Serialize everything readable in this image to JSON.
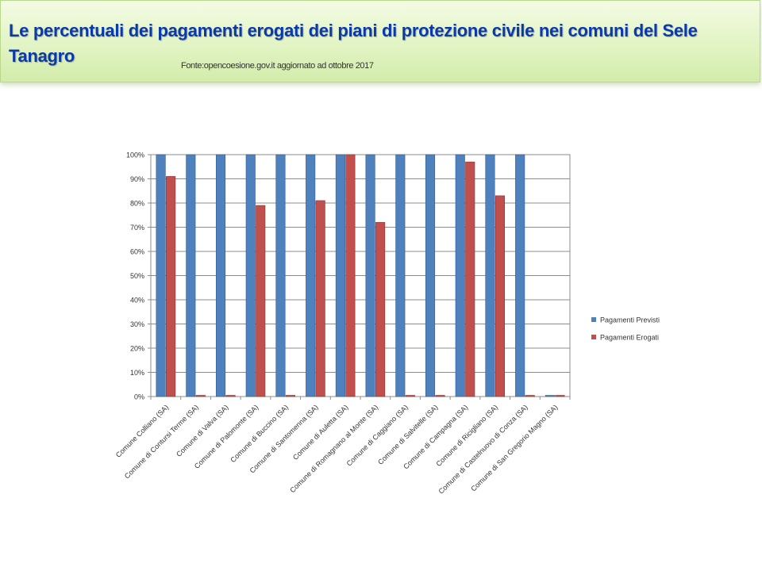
{
  "header": {
    "title": "Le percentuali dei pagamenti erogati  dei piani di protezione civile  nei comuni del Sele Tanagro",
    "source": "Fonte:opencoesione.gov.it aggiornato ad ottobre 2017"
  },
  "colors": {
    "previsti": "#4f81bd",
    "erogati": "#c0504d",
    "grid": "#8c8c8c",
    "axis_text": "#333333"
  },
  "chart_data": {
    "type": "bar",
    "title": "",
    "xlabel": "",
    "ylabel": "",
    "ylim": [
      0,
      100
    ],
    "yticks": [
      "0%",
      "10%",
      "20%",
      "30%",
      "40%",
      "50%",
      "60%",
      "70%",
      "80%",
      "90%",
      "100%"
    ],
    "grid": true,
    "legend_position": "right",
    "categories": [
      "Comune Colliano (SA)",
      "Comune di Contursi Terme (SA)",
      "Comune di Valva (SA)",
      "Comune di Palomonte (SA)",
      "Comune di Buccino (SA)",
      "Comune di Santomenna (SA)",
      "Comune di Auletta (SA)",
      "Comune di Romagnano al Monte (SA)",
      "Comune di Caggiano (SA)",
      "Comune di Salvitelle (SA)",
      "Comune di Campagna (SA)",
      "Comune di Ricigliano (SA)",
      "Comune di Castelnuovo di Conza (SA)",
      "Comune di San Gregorio Magno (SA)"
    ],
    "series": [
      {
        "name": "Pagamenti Previsti",
        "values": [
          100,
          100,
          100,
          100,
          100,
          100,
          100,
          100,
          100,
          100,
          100,
          100,
          100,
          0
        ]
      },
      {
        "name": "Pagamenti Erogati",
        "values": [
          91,
          0,
          0,
          79,
          0,
          81,
          100,
          72,
          0,
          0,
          97,
          83,
          0,
          0
        ]
      }
    ]
  }
}
